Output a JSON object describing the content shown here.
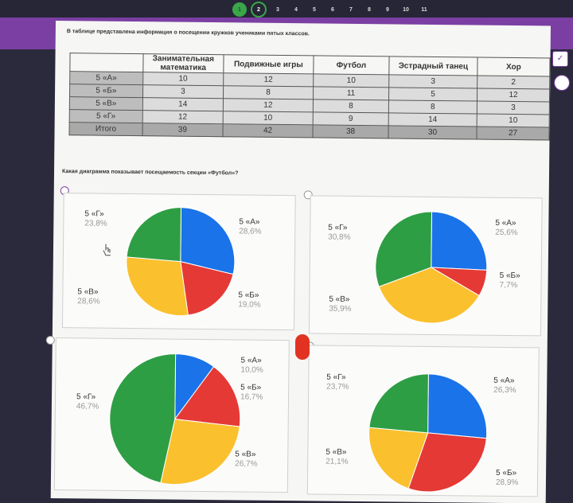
{
  "pager": [
    "1",
    "2",
    "3",
    "4",
    "5",
    "6",
    "7",
    "8",
    "9",
    "10",
    "11"
  ],
  "question_text": "В таблице представлена информация о посещении кружков учениками пятых классов.",
  "table": {
    "headers": [
      "",
      "Занимательная математика",
      "Подвижные игры",
      "Футбол",
      "Эстрадный танец",
      "Хор"
    ],
    "rows": [
      [
        "5 «А»",
        "10",
        "12",
        "10",
        "3",
        "2"
      ],
      [
        "5 «Б»",
        "3",
        "8",
        "11",
        "5",
        "12"
      ],
      [
        "5 «В»",
        "14",
        "12",
        "8",
        "8",
        "3"
      ],
      [
        "5 «Г»",
        "12",
        "10",
        "9",
        "14",
        "10"
      ],
      [
        "Итого",
        "39",
        "42",
        "38",
        "30",
        "27"
      ]
    ]
  },
  "ask_text": "Какая диаграмма показывает посещаемость секции «Футбол»?",
  "colors": {
    "blue": "#1a73e8",
    "red": "#e53935",
    "yellow": "#fbc02d",
    "green": "#2e9e44",
    "accent": "#7b3fa3"
  },
  "chart_data": [
    {
      "type": "pie",
      "option": 1,
      "slices": [
        {
          "label": "5 «А»",
          "value": 28.6,
          "color": "#1a73e8",
          "pct_text": "28,6%"
        },
        {
          "label": "5 «Б»",
          "value": 19.0,
          "color": "#e53935",
          "pct_text": "19,0%"
        },
        {
          "label": "5 «В»",
          "value": 28.6,
          "color": "#fbc02d",
          "pct_text": "28,6%"
        },
        {
          "label": "5 «Г»",
          "value": 23.8,
          "color": "#2e9e44",
          "pct_text": "23,8%"
        }
      ]
    },
    {
      "type": "pie",
      "option": 2,
      "slices": [
        {
          "label": "5 «А»",
          "value": 25.6,
          "color": "#1a73e8",
          "pct_text": "25,6%"
        },
        {
          "label": "5 «Б»",
          "value": 7.7,
          "color": "#e53935",
          "pct_text": "7,7%"
        },
        {
          "label": "5 «В»",
          "value": 35.9,
          "color": "#fbc02d",
          "pct_text": "35,9%"
        },
        {
          "label": "5 «Г»",
          "value": 30.8,
          "color": "#2e9e44",
          "pct_text": "30,8%"
        }
      ]
    },
    {
      "type": "pie",
      "option": 3,
      "slices": [
        {
          "label": "5 «А»",
          "value": 10.0,
          "color": "#1a73e8",
          "pct_text": "10,0%"
        },
        {
          "label": "5 «Б»",
          "value": 16.7,
          "color": "#e53935",
          "pct_text": "16,7%"
        },
        {
          "label": "5 «В»",
          "value": 26.7,
          "color": "#fbc02d",
          "pct_text": "26,7%"
        },
        {
          "label": "5 «Г»",
          "value": 46.7,
          "color": "#2e9e44",
          "pct_text": "46,7%"
        }
      ]
    },
    {
      "type": "pie",
      "option": 4,
      "slices": [
        {
          "label": "5 «А»",
          "value": 26.3,
          "color": "#1a73e8",
          "pct_text": "26,3%"
        },
        {
          "label": "5 «Б»",
          "value": 28.9,
          "color": "#e53935",
          "pct_text": "28,9%"
        },
        {
          "label": "5 «В»",
          "value": 21.1,
          "color": "#fbc02d",
          "pct_text": "21,1%"
        },
        {
          "label": "5 «Г»",
          "value": 23.7,
          "color": "#2e9e44",
          "pct_text": "23,7%"
        }
      ]
    }
  ],
  "icons": [
    "check-icon",
    "radio-icon",
    "hand-cursor-icon"
  ]
}
